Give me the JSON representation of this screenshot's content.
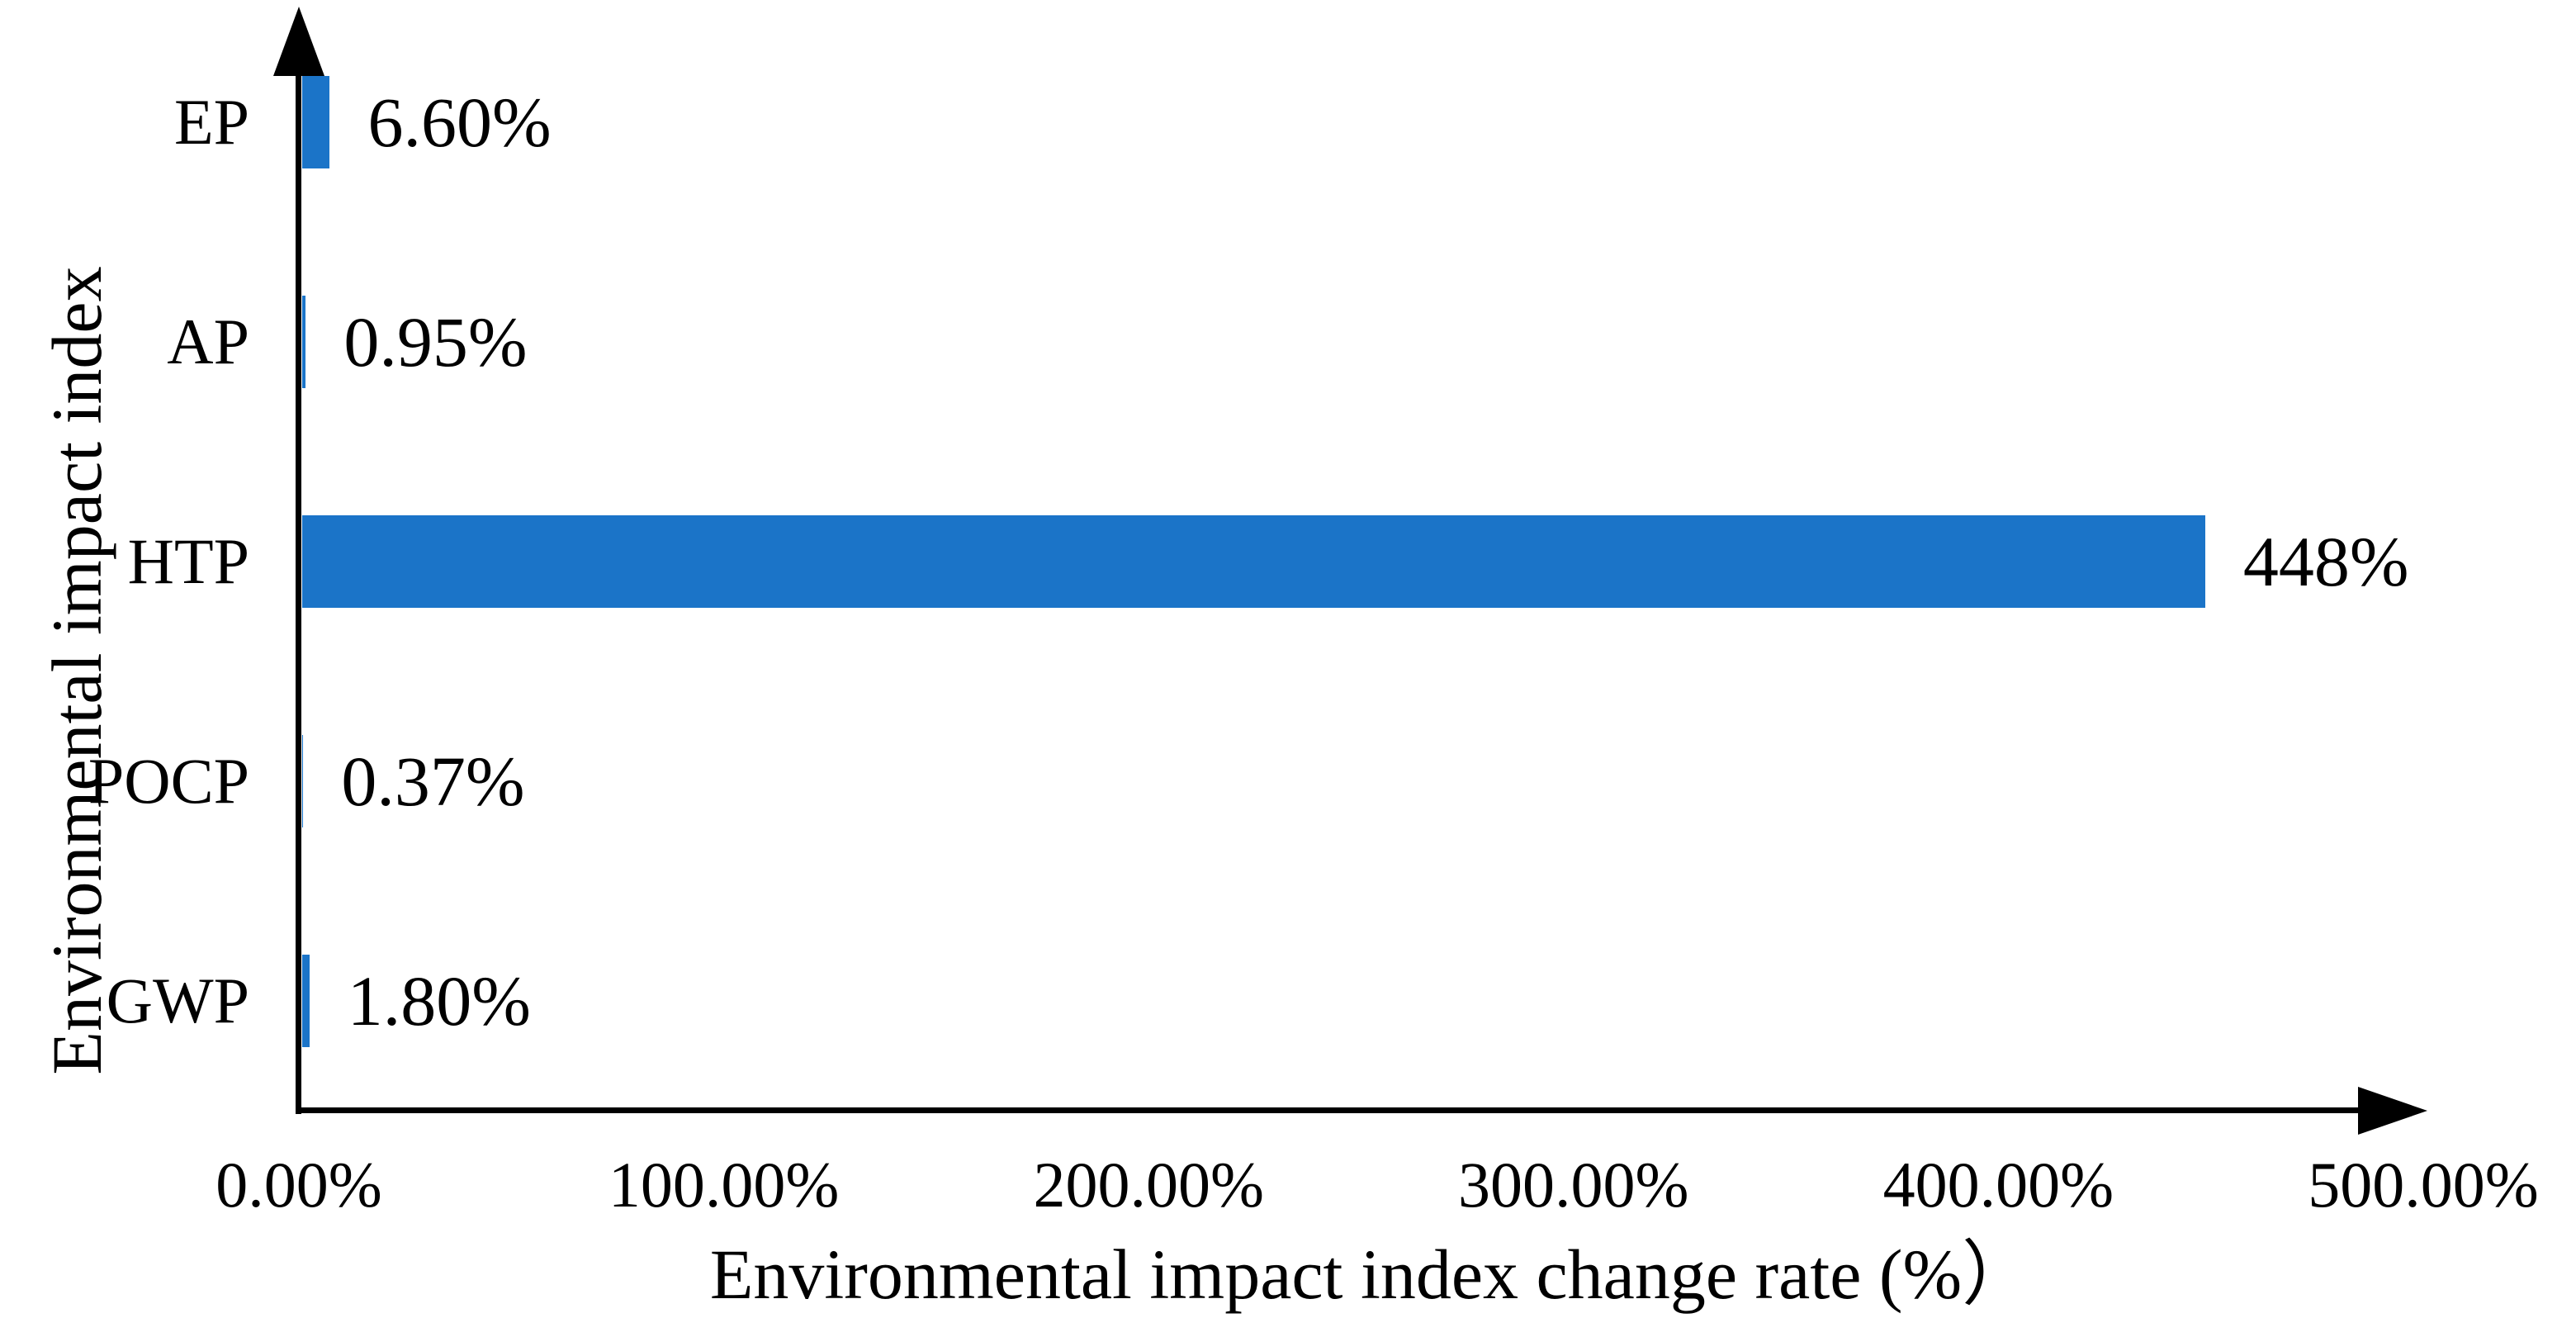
{
  "chart_data": {
    "type": "bar",
    "orientation": "horizontal",
    "title": "",
    "xlabel": "Environmental impact index change rate (%）",
    "ylabel": "Environmental impact index",
    "category_order": "top-to-bottom",
    "categories": [
      "EP",
      "AP",
      "HTP",
      "POCP",
      "GWP"
    ],
    "values": [
      6.6,
      0.95,
      448,
      0.37,
      1.8
    ],
    "data_labels": [
      "6.60%",
      "0.95%",
      "448%",
      "0.37%",
      "1.80%"
    ],
    "xlim": [
      0,
      500
    ],
    "x_ticks": [
      {
        "value": 0,
        "label": "0.00%"
      },
      {
        "value": 100,
        "label": "100.00%"
      },
      {
        "value": 200,
        "label": "200.00%"
      },
      {
        "value": 300,
        "label": "300.00%"
      },
      {
        "value": 400,
        "label": "400.00%"
      },
      {
        "value": 500,
        "label": "500.00%"
      }
    ],
    "bar_color": "#1B74C8",
    "axis_color": "#000000",
    "text_color": "#000000",
    "background_color": "#FFFFFF",
    "grid": "off",
    "legend": "none"
  }
}
